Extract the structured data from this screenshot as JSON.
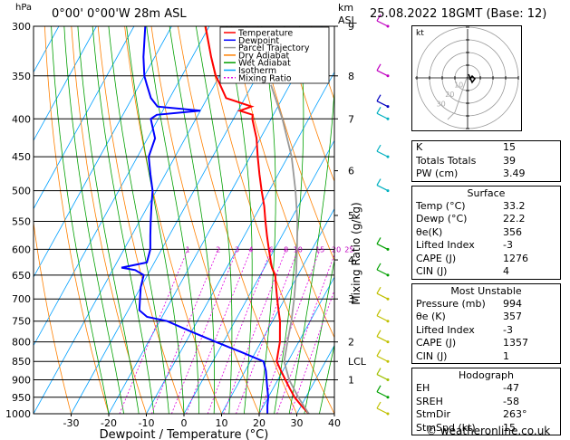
{
  "header": {
    "hpa_label": "hPa",
    "location": "0°00' 0°00'W 28m ASL",
    "km_label": "km",
    "asl_label": "ASL",
    "datetime": "25.08.2022 18GMT (Base: 12)"
  },
  "legend": [
    {
      "label": "Temperature",
      "color": "#ff0000",
      "dash": ""
    },
    {
      "label": "Dewpoint",
      "color": "#0000ff",
      "dash": ""
    },
    {
      "label": "Parcel Trajectory",
      "color": "#999999",
      "dash": ""
    },
    {
      "label": "Dry Adiabat",
      "color": "#ff8000",
      "dash": ""
    },
    {
      "label": "Wet Adiabat",
      "color": "#00a000",
      "dash": ""
    },
    {
      "label": "Isotherm",
      "color": "#00a0ff",
      "dash": ""
    },
    {
      "label": "Mixing Ratio",
      "color": "#e000e0",
      "dash": "2,2"
    }
  ],
  "chart_data": {
    "type": "line",
    "xlabel": "Dewpoint / Temperature (°C)",
    "ylabel_right": "Mixing Ratio (g/kg)",
    "xlim": [
      -40,
      40
    ],
    "ylim_hpa": [
      1000,
      300
    ],
    "log_y": true,
    "pressure_ticks": [
      300,
      350,
      400,
      450,
      500,
      550,
      600,
      650,
      700,
      750,
      800,
      850,
      900,
      950,
      1000
    ],
    "temp_ticks": [
      -30,
      -20,
      -10,
      0,
      10,
      20,
      30,
      40
    ],
    "km_ticks": [
      {
        "p": 300,
        "label": "9"
      },
      {
        "p": 350,
        "label": "8"
      },
      {
        "p": 400,
        "label": "7"
      },
      {
        "p": 470,
        "label": "6"
      },
      {
        "p": 540,
        "label": "5"
      },
      {
        "p": 620,
        "label": "4"
      },
      {
        "p": 700,
        "label": "3"
      },
      {
        "p": 800,
        "label": "2"
      },
      {
        "p": 850,
        "label": "LCL"
      },
      {
        "p": 900,
        "label": "1"
      }
    ],
    "mixing_ratio_labels": [
      "1",
      "2",
      "3",
      "4",
      "6",
      "8",
      "10",
      "15",
      "20",
      "25"
    ],
    "mixing_ratio_values": [
      1,
      2,
      3,
      4,
      6,
      8,
      10,
      15,
      20,
      25
    ],
    "series": [
      {
        "name": "Temperature",
        "color": "#ff0000",
        "p": [
          1000,
          975,
          950,
          925,
          900,
          875,
          850,
          825,
          800,
          775,
          750,
          725,
          700,
          675,
          650,
          635,
          625,
          600,
          575,
          550,
          525,
          500,
          475,
          450,
          425,
          400,
          395,
          390,
          385,
          375,
          360,
          350,
          330,
          300
        ],
        "t": [
          33.2,
          30,
          27,
          24.5,
          22,
          19.5,
          17,
          16,
          15,
          13.5,
          12,
          10,
          8,
          6,
          4,
          2,
          1,
          -1.5,
          -4,
          -6.5,
          -9,
          -12,
          -15,
          -18,
          -21,
          -25,
          -25.5,
          -29.5,
          -27,
          -35,
          -38.5,
          -41,
          -45,
          -51
        ]
      },
      {
        "name": "Dewpoint",
        "color": "#0000ff",
        "p": [
          1000,
          975,
          950,
          925,
          900,
          875,
          850,
          825,
          800,
          775,
          750,
          740,
          725,
          700,
          675,
          650,
          640,
          635,
          625,
          600,
          575,
          550,
          525,
          500,
          475,
          450,
          425,
          400,
          395,
          390,
          385,
          375,
          360,
          350,
          330,
          300
        ],
        "t": [
          22.2,
          21,
          20,
          18.5,
          17,
          15.5,
          13.5,
          6,
          -2,
          -10,
          -18,
          -24,
          -27,
          -28.5,
          -30,
          -31,
          -34,
          -38,
          -32,
          -33,
          -35,
          -37,
          -39,
          -41,
          -44,
          -47,
          -48,
          -52,
          -51,
          -40,
          -52,
          -55,
          -58,
          -60,
          -63,
          -67
        ]
      },
      {
        "name": "Parcel Trajectory",
        "color": "#999999",
        "p": [
          1000,
          950,
          900,
          850,
          800,
          750,
          700,
          650,
          600,
          550,
          500,
          450,
          400,
          360
        ],
        "t": [
          33.2,
          28,
          23,
          19,
          17,
          15,
          12.5,
          9.5,
          6,
          2,
          -3,
          -9,
          -17,
          -25
        ]
      }
    ],
    "wind_barbs": [
      {
        "p": 1000,
        "color": "#c0c000"
      },
      {
        "p": 950,
        "color": "#00a000"
      },
      {
        "p": 900,
        "color": "#a0c000"
      },
      {
        "p": 850,
        "color": "#c0c000"
      },
      {
        "p": 800,
        "color": "#c0c000"
      },
      {
        "p": 750,
        "color": "#c0c000"
      },
      {
        "p": 700,
        "color": "#c0c000"
      },
      {
        "p": 650,
        "color": "#00a000"
      },
      {
        "p": 600,
        "color": "#00a000"
      },
      {
        "p": 500,
        "color": "#00b0c0"
      },
      {
        "p": 450,
        "color": "#00b0c0"
      },
      {
        "p": 400,
        "color": "#00b0c0"
      },
      {
        "p": 385,
        "color": "#0000c0"
      },
      {
        "p": 350,
        "color": "#c000c0"
      },
      {
        "p": 300,
        "color": "#c000c0"
      }
    ]
  },
  "hodograph": {
    "label": "kt",
    "ring_labels": [
      "10",
      "20",
      "30"
    ]
  },
  "indices": {
    "rows": [
      {
        "k": "K",
        "v": "15"
      },
      {
        "k": "Totals Totals",
        "v": "39"
      },
      {
        "k": "PW (cm)",
        "v": "3.49"
      }
    ],
    "sections": [
      {
        "title": "Surface",
        "rows": [
          {
            "k": "Temp (°C)",
            "v": "33.2"
          },
          {
            "k": "Dewp (°C)",
            "v": "22.2"
          },
          {
            "k": "θe(K)",
            "v": "356"
          },
          {
            "k": "Lifted Index",
            "v": "-3"
          },
          {
            "k": "CAPE (J)",
            "v": "1276"
          },
          {
            "k": "CIN (J)",
            "v": "4"
          }
        ]
      },
      {
        "title": "Most Unstable",
        "rows": [
          {
            "k": "Pressure (mb)",
            "v": "994"
          },
          {
            "k": "θe (K)",
            "v": "357"
          },
          {
            "k": "Lifted Index",
            "v": "-3"
          },
          {
            "k": "CAPE (J)",
            "v": "1357"
          },
          {
            "k": "CIN (J)",
            "v": "1"
          }
        ]
      },
      {
        "title": "Hodograph",
        "rows": [
          {
            "k": "EH",
            "v": "-47"
          },
          {
            "k": "SREH",
            "v": "-58"
          },
          {
            "k": "StmDir",
            "v": "263°"
          },
          {
            "k": "StmSpd (kt)",
            "v": "15"
          }
        ]
      }
    ]
  },
  "credit": "© weatheronline.co.uk"
}
